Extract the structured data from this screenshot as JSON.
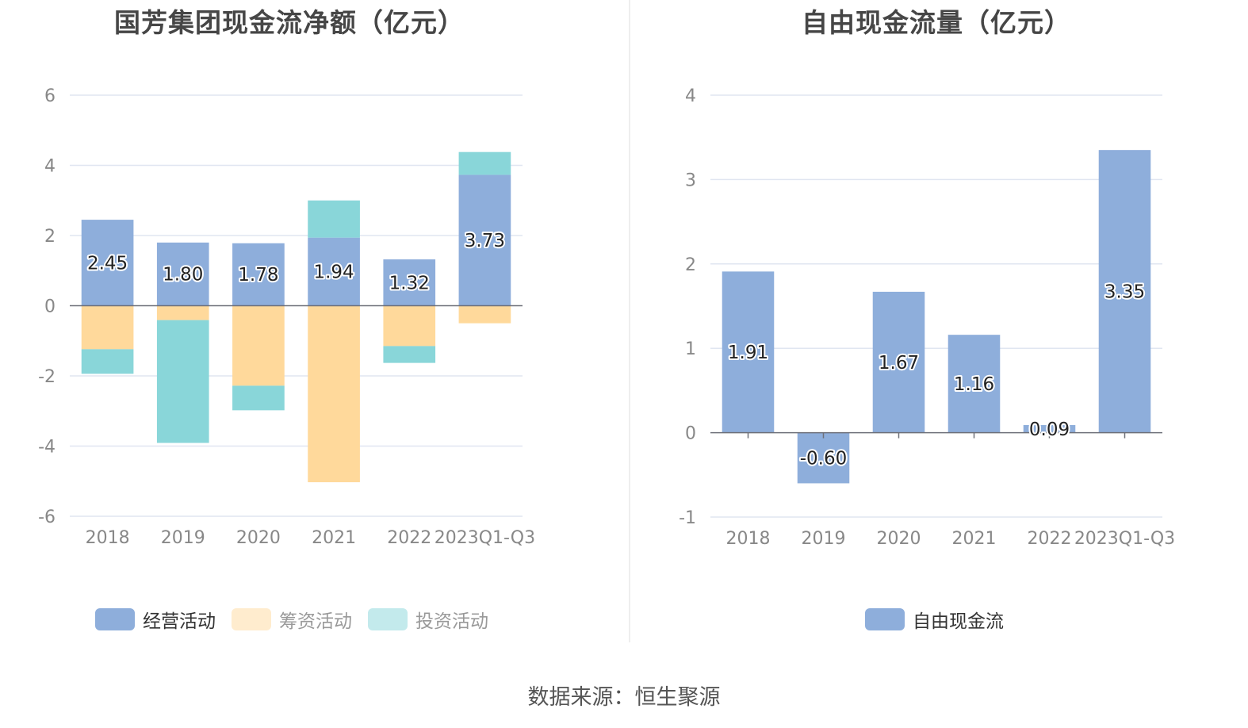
{
  "footer": {
    "source": "数据来源：恒生聚源"
  },
  "chart_data": [
    {
      "type": "bar",
      "stacked": true,
      "title": "国芳集团现金流净额（亿元）",
      "xlabel": "",
      "ylabel": "",
      "categories": [
        "2018",
        "2019",
        "2020",
        "2021",
        "2022",
        "2023Q1-Q3"
      ],
      "ylim": [
        -6,
        6
      ],
      "yticks": [
        6,
        4,
        2,
        0,
        -2,
        -4,
        -6
      ],
      "grid": true,
      "legend_position": "bottom",
      "series": [
        {
          "name": "经营活动",
          "color": "#8eaedb",
          "legend_color": "#8eaedb",
          "dimmed": false,
          "values": [
            2.45,
            1.8,
            1.78,
            1.94,
            1.32,
            3.73
          ],
          "labels": [
            "2.45",
            "1.80",
            "1.78",
            "1.94",
            "1.32",
            "3.73"
          ]
        },
        {
          "name": "筹资活动",
          "color": "#ffd99b",
          "legend_color": "#ffecce",
          "dimmed": true,
          "values": [
            -1.24,
            -0.41,
            -2.28,
            -5.03,
            -1.15,
            -0.5
          ]
        },
        {
          "name": "投资活动",
          "color": "#89d6d9",
          "legend_color": "#c3eaec",
          "dimmed": true,
          "values": [
            -0.7,
            -3.5,
            -0.7,
            1.06,
            -0.48,
            0.65
          ]
        }
      ]
    },
    {
      "type": "bar",
      "title": "自由现金流量（亿元）",
      "xlabel": "",
      "ylabel": "",
      "categories": [
        "2018",
        "2019",
        "2020",
        "2021",
        "2022",
        "2023Q1-Q3"
      ],
      "ylim": [
        -1,
        4
      ],
      "yticks": [
        4,
        3,
        2,
        1,
        0,
        -1
      ],
      "grid": true,
      "legend_position": "bottom",
      "series": [
        {
          "name": "自由现金流",
          "color": "#8eaedb",
          "legend_color": "#8eaedb",
          "dimmed": false,
          "values": [
            1.91,
            -0.6,
            1.67,
            1.16,
            0.09,
            3.35
          ],
          "labels": [
            "1.91",
            "-0.60",
            "1.67",
            "1.16",
            "0.09",
            "3.35"
          ]
        }
      ]
    }
  ]
}
